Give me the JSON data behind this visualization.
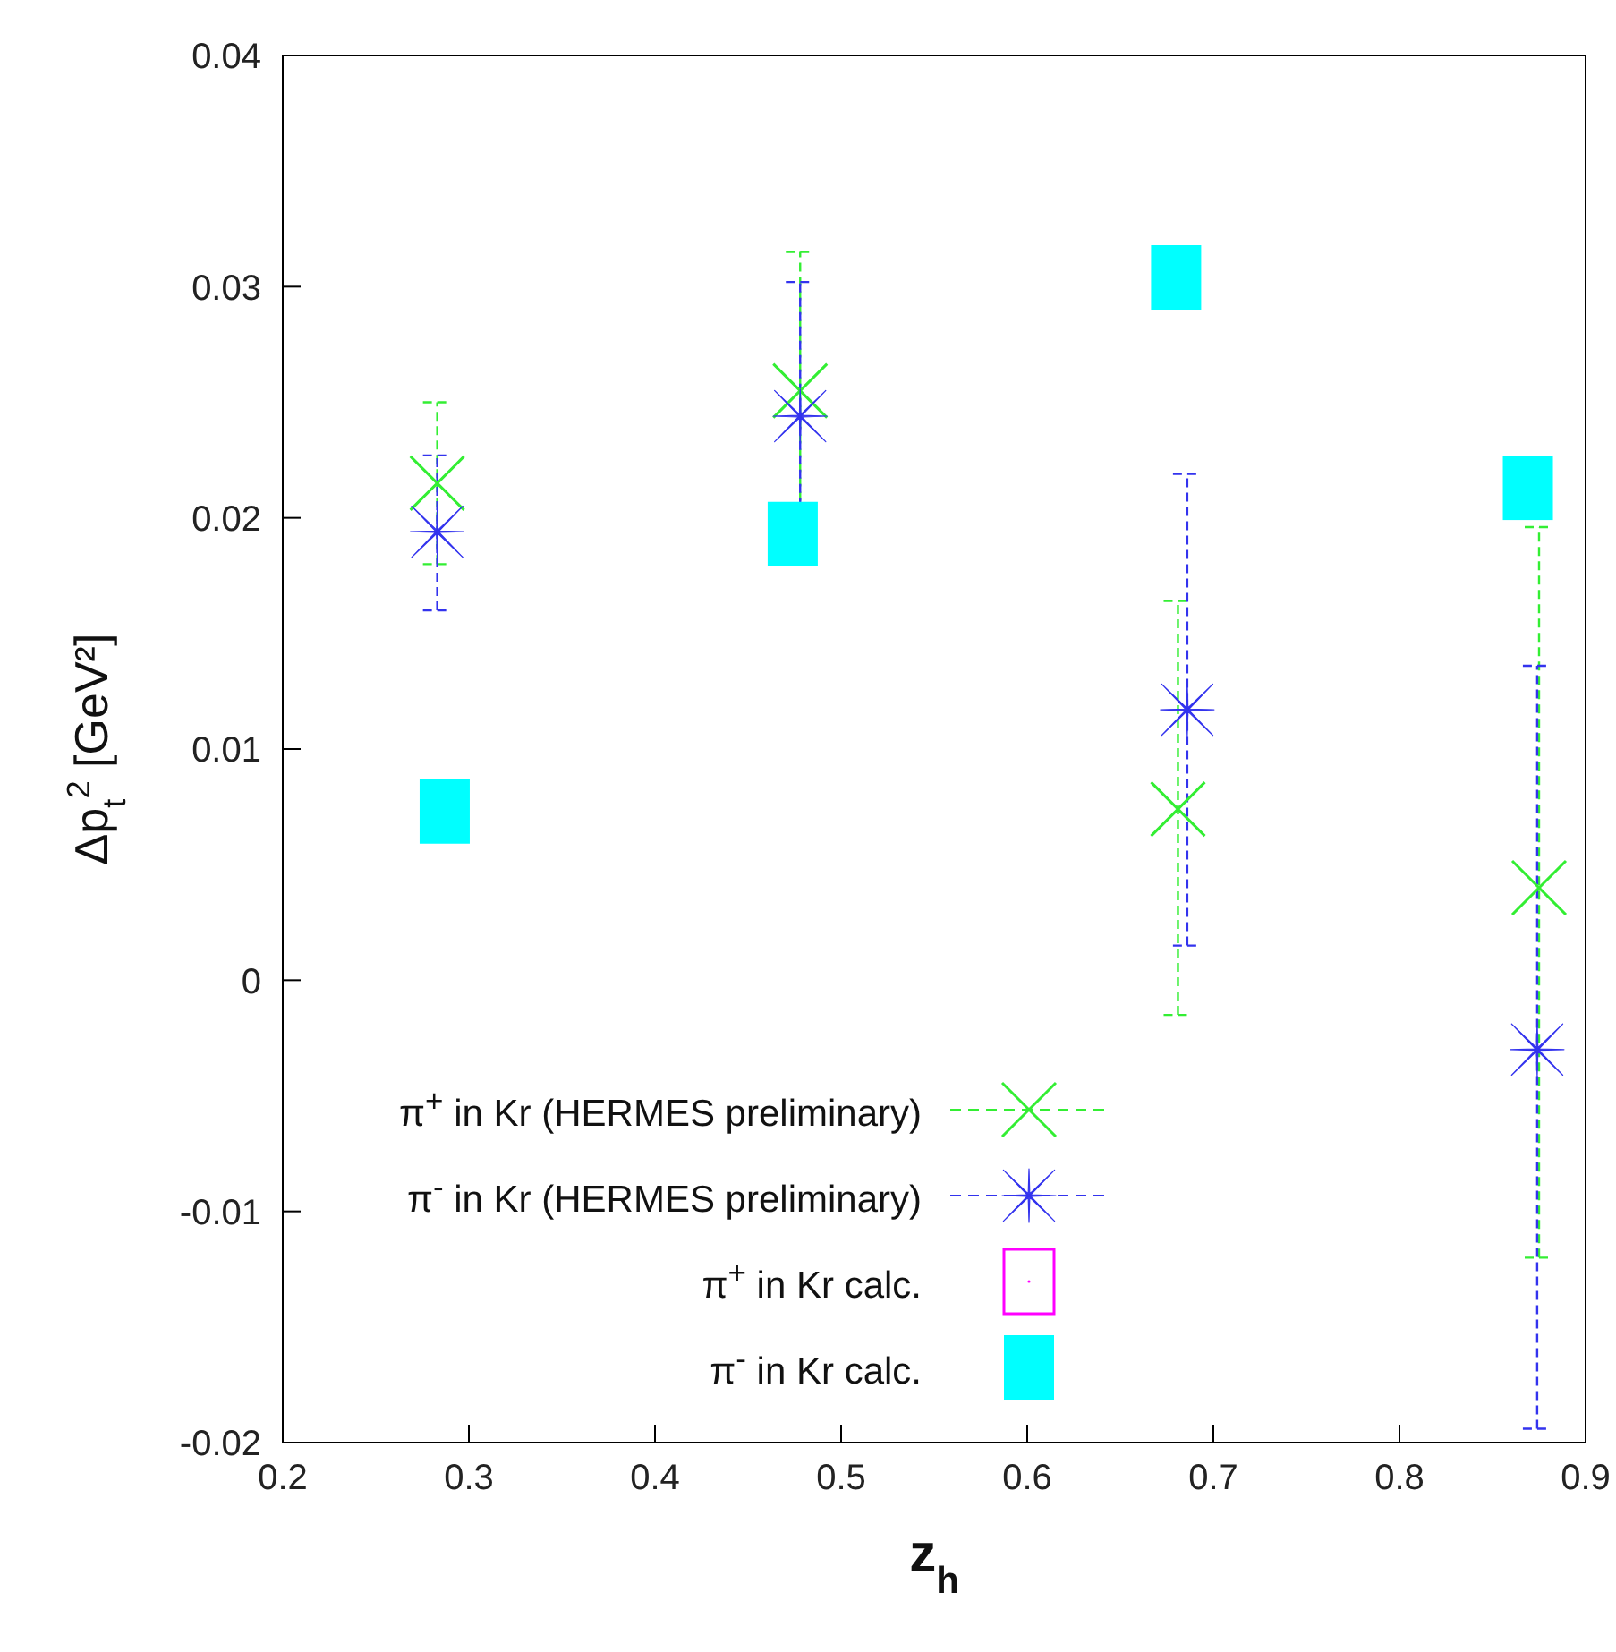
{
  "chart_data": {
    "type": "scatter",
    "xlabel": "z$_{h}$",
    "ylabel": "Δp$_{t}$$^{2}$ [GeV²]",
    "xlim": [
      0.2,
      0.9
    ],
    "ylim": [
      -0.02,
      0.04
    ],
    "xticks": [
      0.2,
      0.3,
      0.4,
      0.5,
      0.6,
      0.7,
      0.8,
      0.9
    ],
    "yticks": [
      -0.02,
      -0.01,
      0,
      0.01,
      0.02,
      0.03,
      0.04
    ],
    "grid": false,
    "legend": "bottom",
    "series": [
      {
        "name": "π$^{+}$ in Kr (HERMES preliminary)",
        "color": "#33ee33",
        "marker": "cross",
        "x": [
          0.283,
          0.478,
          0.681,
          0.875
        ],
        "values": [
          0.0215,
          0.0255,
          0.0074,
          0.004
        ],
        "errors": [
          [
            0.018,
            0.025
          ],
          0.006,
          [
            -0.0015,
            0.0164
          ],
          [
            -0.012,
            0.0196
          ]
        ]
      },
      {
        "name": "π$^{-}$ in Kr (HERMES preliminary)",
        "color": "#3333ee",
        "marker": "star",
        "x": [
          0.283,
          0.478,
          0.686,
          0.874
        ],
        "values": [
          0.0194,
          0.0244,
          0.0117,
          -0.003
        ],
        "errors": [
          [
            0.016,
            0.0227
          ],
          0.0058,
          [
            0.0015,
            0.0219
          ],
          [
            -0.0194,
            0.0136
          ]
        ]
      },
      {
        "name": "π$^{+}$ in Kr calc.",
        "color": "#ff00ff",
        "marker": "square"
      },
      {
        "name": "π$^{-}$ in Kr calc.",
        "color": "#00ffff",
        "marker": "square",
        "x": [
          0.287,
          0.474,
          0.68,
          0.869
        ],
        "values": [
          0.0073,
          0.0193,
          0.0304,
          0.0213
        ]
      }
    ]
  }
}
